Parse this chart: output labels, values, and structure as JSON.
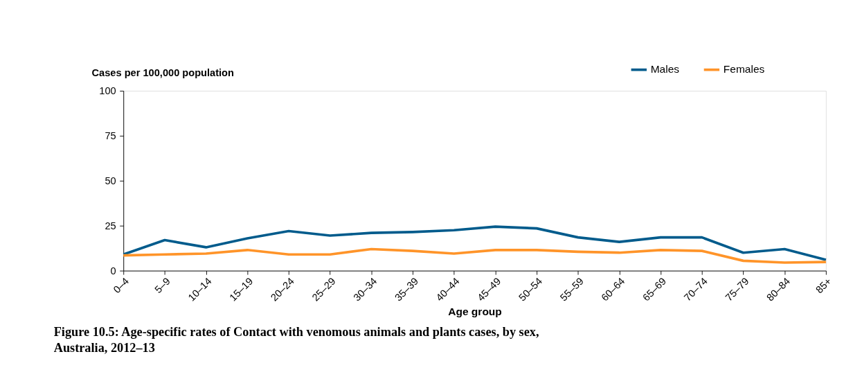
{
  "chart_data": {
    "type": "line",
    "title": "Figure 10.5: Age-specific rates of Contact with venomous animals and plants cases, by sex, Australia, 2012–13",
    "xlabel": "Age group",
    "ylabel": "Cases per 100,000 population",
    "categories": [
      "0–4",
      "5–9",
      "10–14",
      "15–19",
      "20–24",
      "25–29",
      "30–34",
      "35–39",
      "40–44",
      "45–49",
      "50–54",
      "55–59",
      "60–64",
      "65–69",
      "70–74",
      "75–79",
      "80–84",
      "85+"
    ],
    "series": [
      {
        "name": "Males",
        "color": "#005b8c",
        "values": [
          9,
          17,
          13,
          18,
          22,
          19.5,
          21,
          21.5,
          22.5,
          24.5,
          23.5,
          18.5,
          16,
          18.5,
          18.5,
          10,
          12,
          6
        ]
      },
      {
        "name": "Females",
        "color": "#ff9429",
        "values": [
          8.5,
          9,
          9.5,
          11.5,
          9,
          9,
          12,
          11,
          9.5,
          11.5,
          11.5,
          10.5,
          10,
          11.5,
          11,
          5.5,
          4.5,
          4.8
        ]
      }
    ],
    "ylim": [
      0,
      100
    ],
    "yticks": [
      0,
      25,
      50,
      75,
      100
    ],
    "grid": false,
    "legend": "top right",
    "marker": "none",
    "line_style": "solid"
  }
}
